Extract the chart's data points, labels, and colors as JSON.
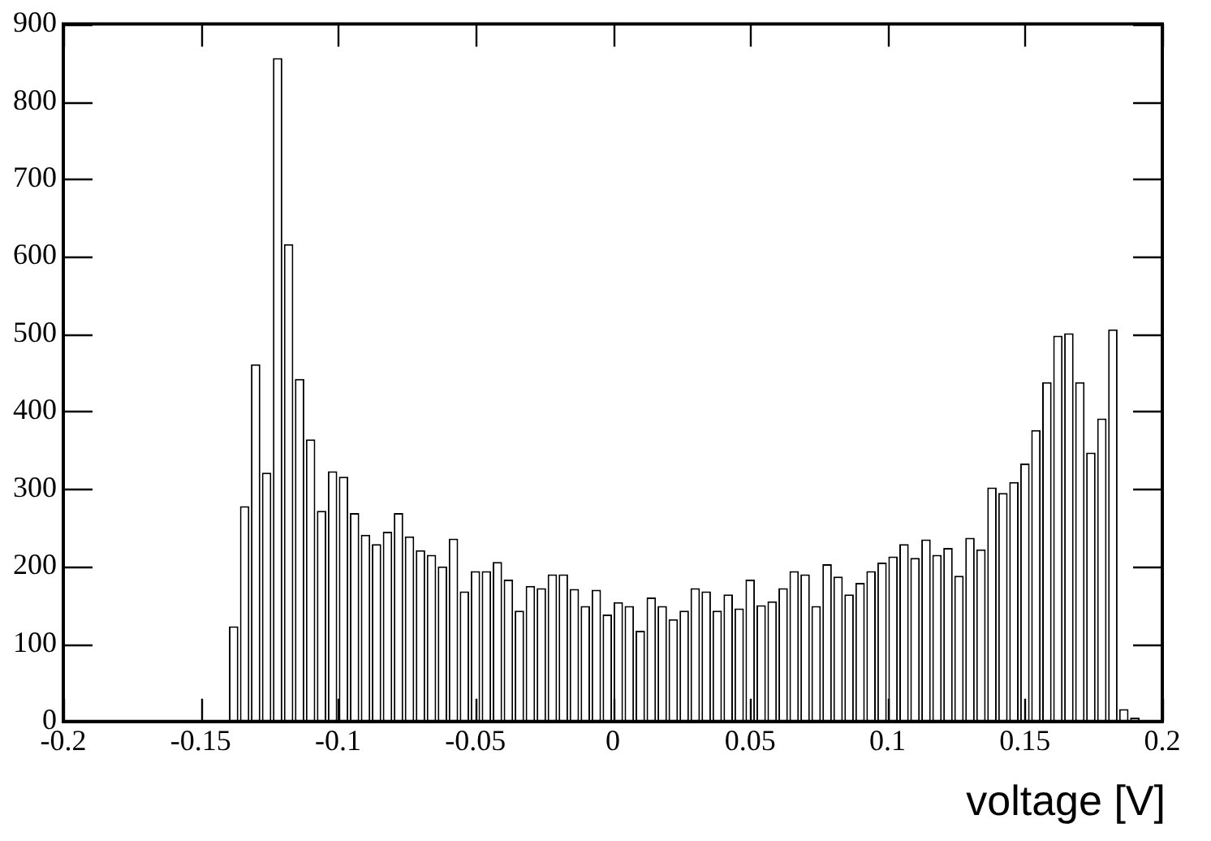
{
  "chart_data": {
    "type": "histogram",
    "xlabel": "voltage [V]",
    "color": "#000000",
    "grid": false,
    "bins": [
      -0.14,
      -0.136,
      -0.132,
      -0.128,
      -0.124,
      -0.12,
      -0.116,
      -0.112,
      -0.108,
      -0.104,
      -0.1,
      -0.096,
      -0.092,
      -0.088,
      -0.084,
      -0.08,
      -0.076,
      -0.072,
      -0.068,
      -0.064,
      -0.06,
      -0.056,
      -0.052,
      -0.048,
      -0.044,
      -0.04,
      -0.036,
      -0.032,
      -0.028,
      -0.024,
      -0.02,
      -0.016,
      -0.012,
      -0.008,
      -0.004,
      0,
      0.004,
      0.008,
      0.012,
      0.016,
      0.02,
      0.024,
      0.028,
      0.032,
      0.036,
      0.04,
      0.044,
      0.048,
      0.052,
      0.056,
      0.06,
      0.064,
      0.068,
      0.072,
      0.076,
      0.08,
      0.084,
      0.088,
      0.092,
      0.096,
      0.1,
      0.104,
      0.108,
      0.112,
      0.116,
      0.12,
      0.124,
      0.128,
      0.132,
      0.136,
      0.14,
      0.144,
      0.148,
      0.152,
      0.156,
      0.16,
      0.164,
      0.168,
      0.172,
      0.176,
      0.18,
      0.184,
      0.188,
      0.192
    ],
    "values": [
      123,
      278,
      461,
      321,
      856,
      616,
      442,
      364,
      272,
      323,
      316,
      269,
      241,
      229,
      245,
      269,
      239,
      221,
      215,
      200,
      236,
      168,
      194,
      194,
      206,
      183,
      143,
      175,
      172,
      190,
      190,
      171,
      149,
      170,
      138,
      154,
      149,
      117,
      160,
      149,
      132,
      143,
      172,
      168,
      143,
      164,
      146,
      183,
      150,
      155,
      172,
      194,
      190,
      149,
      203,
      187,
      164,
      179,
      194,
      205,
      213,
      229,
      211,
      235,
      215,
      224,
      188,
      237,
      222,
      302,
      295,
      309,
      333,
      376,
      438,
      498,
      501,
      438,
      347,
      391,
      506,
      16,
      5
    ],
    "xlim": [
      -0.2,
      0.2
    ],
    "ylim": [
      0,
      900
    ],
    "xticks": [
      -0.2,
      -0.15,
      -0.1,
      -0.05,
      0,
      0.05,
      0.1,
      0.15,
      0.2
    ],
    "yticks": [
      0,
      100,
      200,
      300,
      400,
      500,
      600,
      700,
      800,
      900
    ]
  }
}
